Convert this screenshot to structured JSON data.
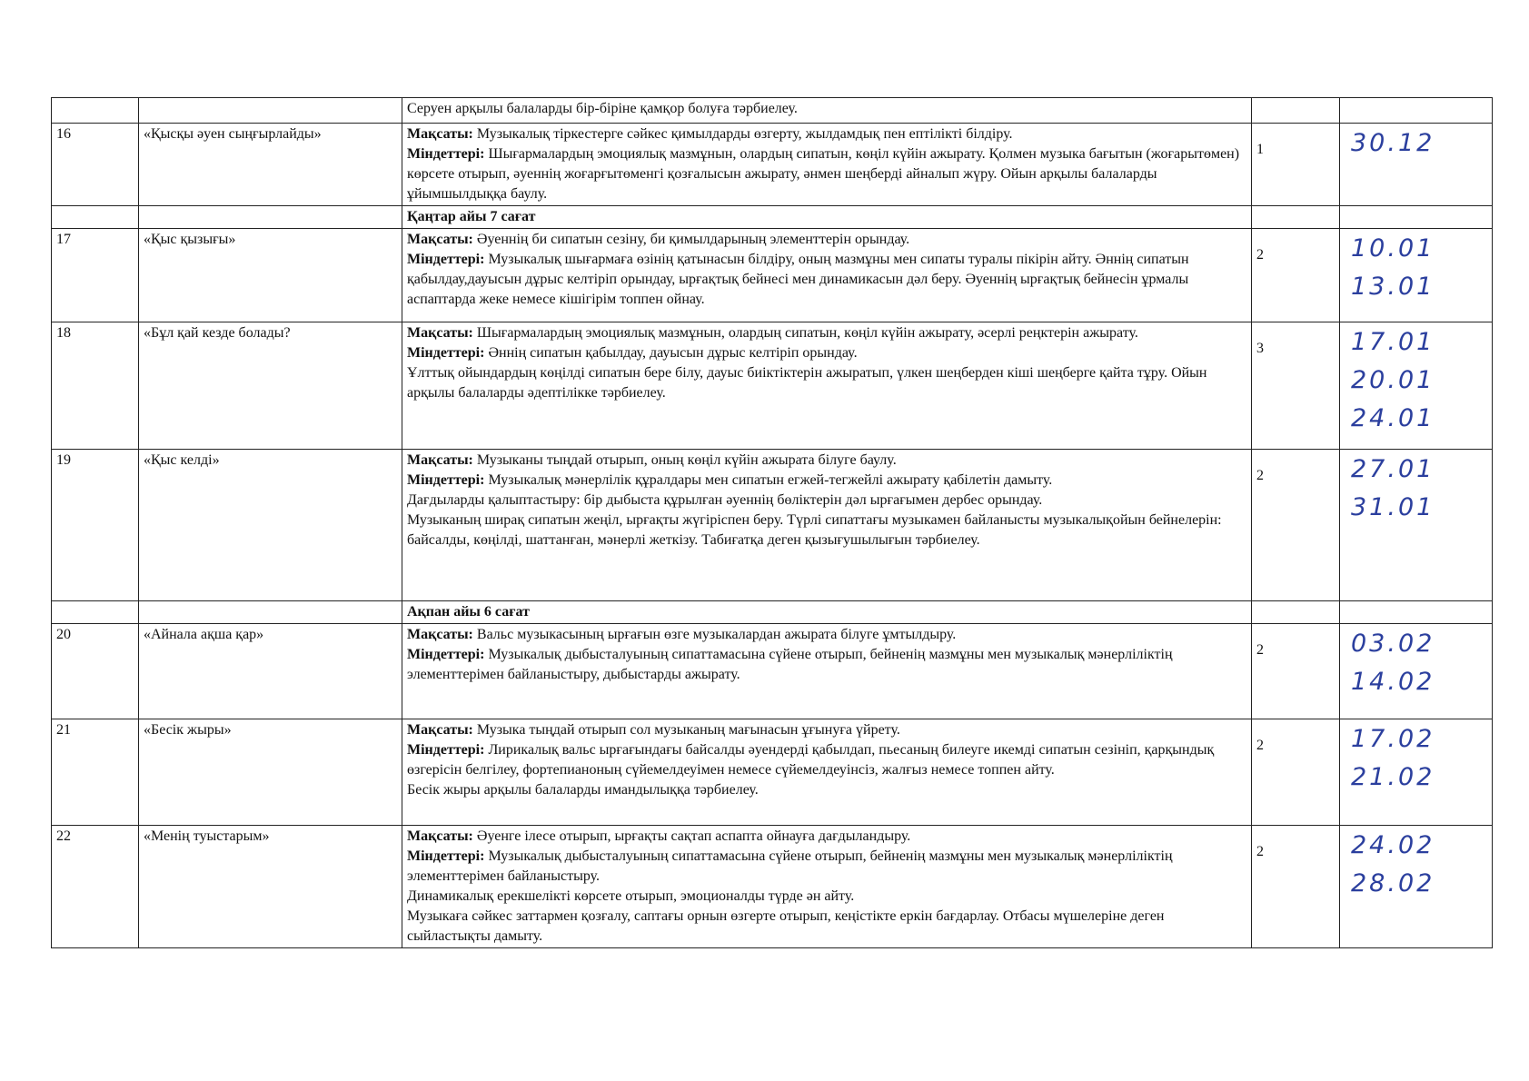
{
  "rows": [
    {
      "kind": "lesson",
      "num": "",
      "title": "",
      "lines": [
        {
          "text": "Серуен арқылы балаларды бір-біріне қамқор болуға тәрбиелеу."
        }
      ],
      "hours": "",
      "dates": []
    },
    {
      "kind": "lesson",
      "num": "16",
      "title": "«Қысқы әуен сыңғырлайды»",
      "lines": [
        {
          "label": "Мақсаты:",
          "text": " Музыкалық тіркестерге сәйкес қимылдарды өзгерту, жылдамдық пен ептілікті білдіру."
        },
        {
          "label": "Міндеттері:",
          "text": " Шығармалардың эмоциялық мазмұнын, олардың сипатын, көңіл күйін ажырату. Қолмен музыка бағытын (жоғарытөмен) көрсете отырып, әуеннің жоғарғытөменгі қозғалысын ажырату, әнмен шеңберді айналып жүру. Ойын арқылы балаларды ұйымшылдыққа баулу."
        }
      ],
      "hours": "1",
      "dates": [
        "30.12"
      ]
    },
    {
      "kind": "month",
      "text": "Қаңтар айы   7   сағат"
    },
    {
      "kind": "lesson",
      "num": "17",
      "title": "«Қыс қызығы»",
      "lines": [
        {
          "label": "Мақсаты:",
          "text": " Әуеннің би сипатын сезіну, би қимылдарының элементтерін орындау."
        },
        {
          "label": "Міндеттері:",
          "text": " Музыкалық шығармаға өзінің қатынасын білдіру, оның мазмұны мен сипаты туралы пікірін айту. Әннің сипатын қабылдау,дауысын дұрыс келтіріп орындау, ырғақтық бейнесі мен динамикасын дәл беру. Әуеннің ырғақтық бейнесін ұрмалы аспаптарда жеке немесе кішігірім топпен ойнау."
        }
      ],
      "hours": "2",
      "dates": [
        "10.01",
        "13.01"
      ]
    },
    {
      "kind": "lesson",
      "num": "18",
      "title": "«Бұл қай кезде болады?",
      "lines": [
        {
          "label": "Мақсаты:",
          "text": " Шығармалардың эмоциялық мазмұнын, олардың сипатын,  көңіл күйін ажырату, әсерлі реңктерін ажырату."
        },
        {
          "label": "Міндеттері:",
          "text": " Әннің сипатын қабылдау, дауысын дұрыс келтіріп орындау."
        },
        {
          "text": "Ұлттық ойындардың көңілді сипатын бере білу, дауыс биіктіктерін ажыратып,  үлкен шеңберден кіші шеңберге қайта тұру. Ойын арқылы балаларды әдептілікке тәрбиелеу."
        }
      ],
      "hours": "3",
      "dates": [
        "17.01",
        "20.01",
        "24.01"
      ]
    },
    {
      "kind": "lesson",
      "num": "19",
      "title": "«Қыс келді»",
      "lines": [
        {
          "label": "Мақсаты:",
          "text": " Музыканы тыңдай отырып, оның көңіл күйін ажырата білуге баулу."
        },
        {
          "label": "Міндеттері:",
          "text": " Музыкалық мәнерлілік құралдары мен сипатын егжей-тегжейлі ажырату қабілетін дамыту."
        },
        {
          "text": "Дағдыларды қалыптастыру: бір дыбыста құрылған әуеннің бөліктерін дәл ырғағымен дербес орындау."
        },
        {
          "text": "Музыканың ширақ сипатын жеңіл, ырғақты жүгіріспен беру. Түрлі сипаттағы музыкамен байланысты музыкалықойын бейнелерін: байсалды,  көңілді, шаттанған, мәнерлі жеткізу. Табиғатқа деген қызығушылығын тәрбиелеу."
        }
      ],
      "hours": "2",
      "dates": [
        "27.01",
        "31.01"
      ]
    },
    {
      "kind": "month",
      "text": "Ақпан айы    6 сағат"
    },
    {
      "kind": "lesson",
      "num": "20",
      "title": "«Айнала ақша қар»",
      "lines": [
        {
          "label": "Мақсаты:",
          "text": " Вальс музыкасының ырғағын өзге музыкалардан ажырата білуге ұмтылдыру."
        },
        {
          "label": "Міндеттері:",
          "text": " Музыкалық дыбысталуының сипаттамасына сүйене отырып, бейненің мазмұны мен музыкалық мәнерліліктің элементтерімен байланыстыру, дыбыстарды ажырату."
        }
      ],
      "hours": "2",
      "dates": [
        "03.02",
        "14.02"
      ]
    },
    {
      "kind": "lesson",
      "num": "21",
      "title": "«Бесік жыры»",
      "lines": [
        {
          "label": "Мақсаты:",
          "text": " Музыка тыңдай отырып сол музыканың мағынасын ұғынуға үйрету."
        },
        {
          "label": "Міндеттері:",
          "text": " Лирикалық вальс ырғағындағы байсалды әуендерді қабылдап, пьесаның билеуге икемді сипатын сезініп, қарқындық өзгерісін белгілеу, фортепианоның сүйемелдеуімен немесе сүйемелдеуінсіз, жалғыз немесе топпен айту."
        },
        {
          "text": "Бесік жыры арқылы балаларды имандылыққа тәрбиелеу."
        }
      ],
      "hours": "2",
      "dates": [
        "17.02",
        "21.02"
      ]
    },
    {
      "kind": "lesson",
      "num": "22",
      "title": "«Менің туыстарым»",
      "lines": [
        {
          "label": "Мақсаты:",
          "text": " Әуенге ілесе отырып, ырғақты сақтап аспапта ойнауға дағдыландыру."
        },
        {
          "label": "Міндеттері:",
          "text": " Музыкалық дыбысталуының сипаттамасына сүйене отырып, бейненің мазмұны мен музыкалық мәнерліліктің элементтерімен байланыстыру."
        },
        {
          "text": " Динамикалық ерекшелікті көрсете отырып, эмоционалды түрде ән айту."
        },
        {
          "text": "Музыкаға сәйкес заттармен қозғалу, саптағы орнын өзгерте отырып, кеңістікте еркін бағдарлау. Отбасы мүшелеріне деген сыйластықты дамыту."
        }
      ],
      "hours": "2",
      "dates": [
        "24.02",
        "28.02"
      ]
    }
  ]
}
